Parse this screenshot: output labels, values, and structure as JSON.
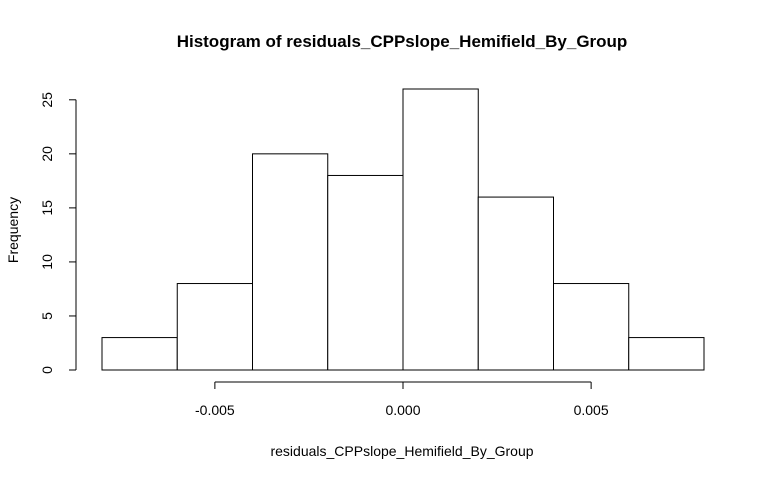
{
  "chart_data": {
    "type": "bar",
    "subtype": "histogram",
    "title": "Histogram of residuals_CPPslope_Hemifield_By_Group",
    "xlabel": "residuals_CPPslope_Hemifield_By_Group",
    "ylabel": "Frequency",
    "bins": [
      {
        "start": -0.008,
        "end": -0.006,
        "count": 3
      },
      {
        "start": -0.006,
        "end": -0.004,
        "count": 8
      },
      {
        "start": -0.004,
        "end": -0.002,
        "count": 20
      },
      {
        "start": -0.002,
        "end": 0.0,
        "count": 18
      },
      {
        "start": 0.0,
        "end": 0.002,
        "count": 26
      },
      {
        "start": 0.002,
        "end": 0.004,
        "count": 16
      },
      {
        "start": 0.004,
        "end": 0.006,
        "count": 8
      },
      {
        "start": 0.006,
        "end": 0.008,
        "count": 3
      }
    ],
    "xlim": [
      -0.008,
      0.008
    ],
    "ylim": [
      0,
      26
    ],
    "x_ticks": [
      {
        "value": -0.005,
        "label": "-0.005"
      },
      {
        "value": 0.0,
        "label": "0.000"
      },
      {
        "value": 0.005,
        "label": "0.005"
      }
    ],
    "y_ticks": [
      {
        "value": 0,
        "label": "0"
      },
      {
        "value": 5,
        "label": "5"
      },
      {
        "value": 10,
        "label": "10"
      },
      {
        "value": 15,
        "label": "15"
      },
      {
        "value": 20,
        "label": "20"
      },
      {
        "value": 25,
        "label": "25"
      }
    ],
    "grid": false,
    "bar_fill": "#ffffff",
    "bar_stroke": "#000000"
  }
}
